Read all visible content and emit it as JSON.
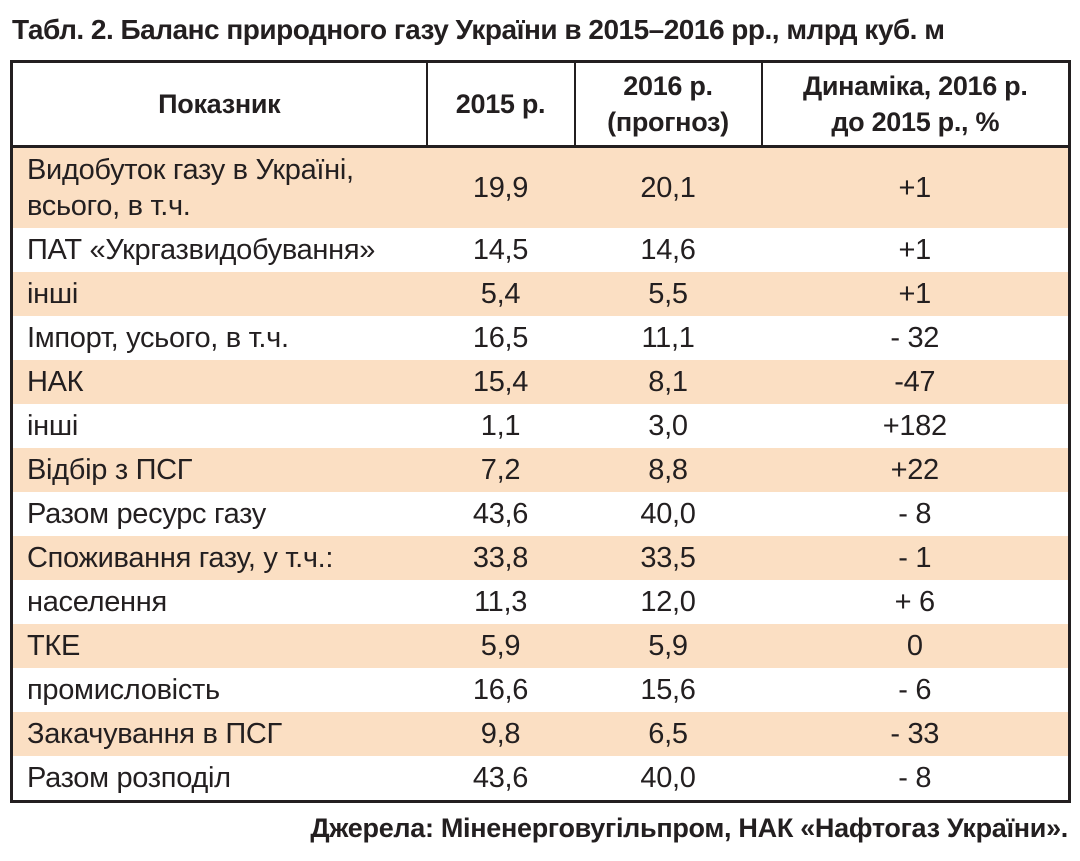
{
  "title": "Табл. 2. Баланс природного газу України в 2015–2016 рр., млрд куб. м",
  "colors": {
    "row_highlight": "#fbdfc3",
    "border": "#231f20",
    "text": "#231f20"
  },
  "table": {
    "headers": [
      "Показник",
      "2015 р.",
      "2016 р.\n(прогноз)",
      "Динаміка, 2016 р.\nдо 2015 р., %"
    ],
    "rows": [
      {
        "indicator": "Видобуток газу в Україні, всього, в т.ч.",
        "y2015": "19,9",
        "y2016": "20,1",
        "dynamics": "+1"
      },
      {
        "indicator": "ПАТ «Укргазвидобування»",
        "y2015": "14,5",
        "y2016": "14,6",
        "dynamics": "+1"
      },
      {
        "indicator": "інші",
        "y2015": "5,4",
        "y2016": "5,5",
        "dynamics": "+1"
      },
      {
        "indicator": "Імпорт, усього, в т.ч.",
        "y2015": "16,5",
        "y2016": "11,1",
        "dynamics": "- 32"
      },
      {
        "indicator": "НАК",
        "y2015": "15,4",
        "y2016": "8,1",
        "dynamics": "-47"
      },
      {
        "indicator": "інші",
        "y2015": "1,1",
        "y2016": "3,0",
        "dynamics": "+182"
      },
      {
        "indicator": "Відбір з ПСГ",
        "y2015": "7,2",
        "y2016": "8,8",
        "dynamics": "+22"
      },
      {
        "indicator": "Разом ресурс газу",
        "y2015": "43,6",
        "y2016": "40,0",
        "dynamics": "- 8"
      },
      {
        "indicator": "Споживання газу, у т.ч.:",
        "y2015": "33,8",
        "y2016": "33,5",
        "dynamics": "- 1"
      },
      {
        "indicator": "населення",
        "y2015": "11,3",
        "y2016": "12,0",
        "dynamics": "+ 6"
      },
      {
        "indicator": "ТКЕ",
        "y2015": "5,9",
        "y2016": "5,9",
        "dynamics": "0"
      },
      {
        "indicator": "промисловість",
        "y2015": "16,6",
        "y2016": "15,6",
        "dynamics": "- 6"
      },
      {
        "indicator": "Закачування в ПСГ",
        "y2015": "9,8",
        "y2016": "6,5",
        "dynamics": "- 33"
      },
      {
        "indicator": "Разом розподіл",
        "y2015": "43,6",
        "y2016": "40,0",
        "dynamics": "- 8"
      }
    ]
  },
  "footer": "Джерела: Міненерговугільпром, НАК «Нафтогаз України»."
}
